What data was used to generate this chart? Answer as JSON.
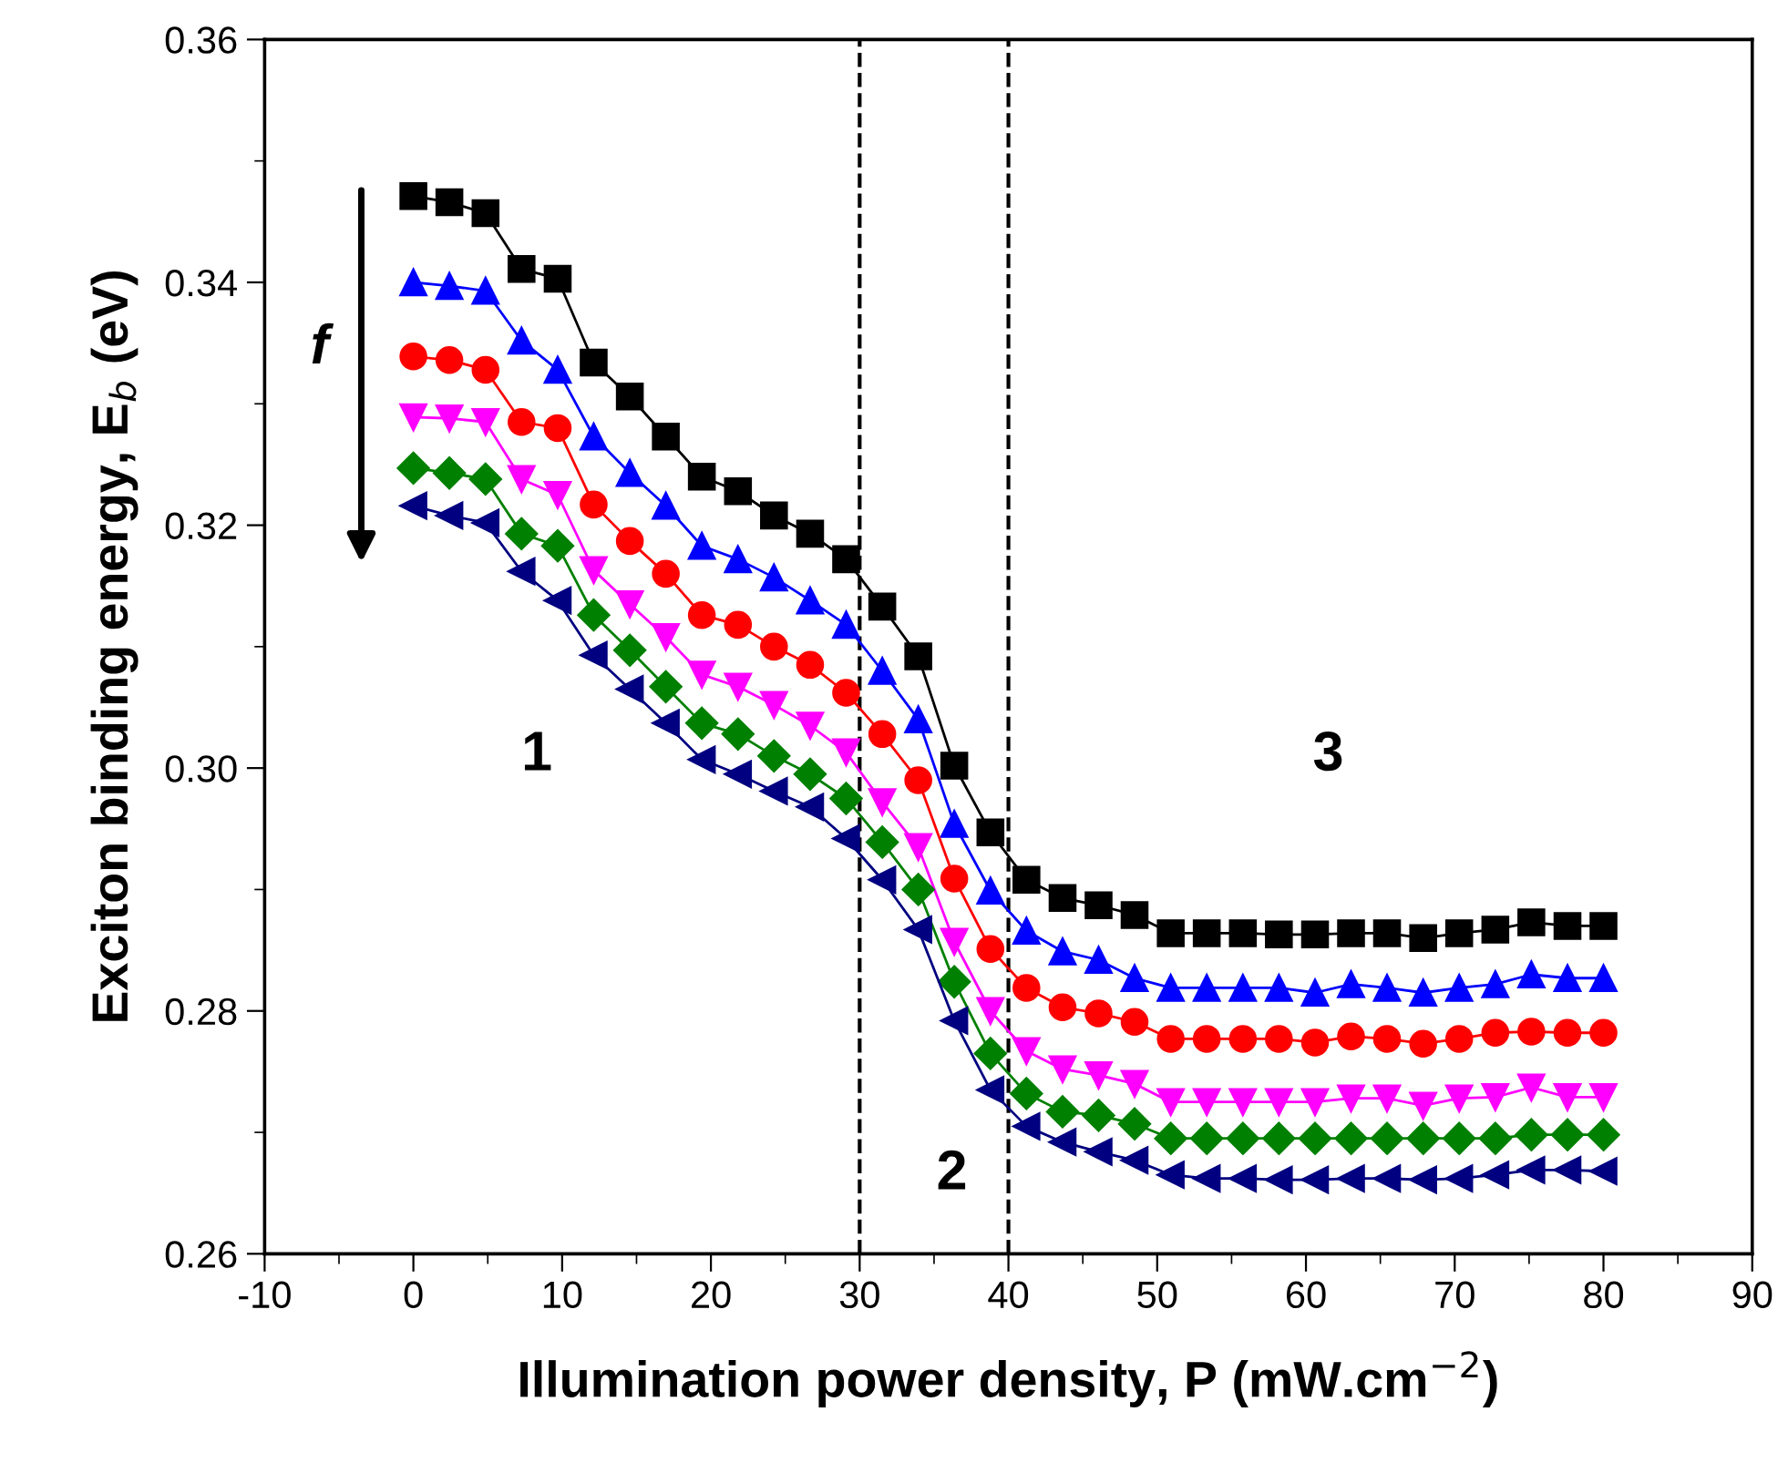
{
  "chart_data": {
    "type": "line",
    "xlabel": "Illumination power density, P (mW.cm$^{−2}$)",
    "ylabel": "Exciton binding energy, E$_{b}$ (eV)",
    "x": [
      0,
      2.42,
      4.85,
      7.27,
      9.7,
      12.12,
      14.55,
      16.97,
      19.39,
      21.82,
      24.24,
      26.67,
      29.09,
      31.52,
      33.94,
      36.36,
      38.79,
      41.21,
      43.64,
      46.06,
      48.48,
      50.91,
      53.33,
      55.76,
      58.18,
      60.61,
      63.03,
      65.45,
      67.88,
      70.3,
      72.73,
      75.15,
      77.58,
      80
    ],
    "series": [
      {
        "color": "#000000",
        "marker": "square",
        "values": [
          0.3471,
          0.3466,
          0.3457,
          0.3411,
          0.3403,
          0.3334,
          0.3306,
          0.3273,
          0.324,
          0.3228,
          0.3208,
          0.3193,
          0.3172,
          0.3133,
          0.3092,
          0.3002,
          0.2947,
          0.2908,
          0.2893,
          0.2887,
          0.2879,
          0.2864,
          0.2864,
          0.2864,
          0.2863,
          0.2863,
          0.2864,
          0.2864,
          0.286,
          0.2864,
          0.2867,
          0.2873,
          0.287,
          0.287
        ]
      },
      {
        "color": "#0000ff",
        "marker": "triangle",
        "values": [
          0.34,
          0.3397,
          0.3393,
          0.3352,
          0.3328,
          0.3273,
          0.3243,
          0.3216,
          0.3183,
          0.3172,
          0.3157,
          0.3138,
          0.3118,
          0.308,
          0.304,
          0.2954,
          0.2899,
          0.2866,
          0.2849,
          0.2842,
          0.2827,
          0.2819,
          0.2819,
          0.2819,
          0.2819,
          0.2815,
          0.2822,
          0.2819,
          0.2815,
          0.2819,
          0.2822,
          0.283,
          0.2827,
          0.2827
        ]
      },
      {
        "color": "#ff0000",
        "marker": "circle",
        "values": [
          0.3339,
          0.3336,
          0.3328,
          0.3285,
          0.328,
          0.3217,
          0.3187,
          0.316,
          0.3126,
          0.3118,
          0.31,
          0.3085,
          0.3062,
          0.3028,
          0.299,
          0.2909,
          0.2851,
          0.2819,
          0.2803,
          0.2798,
          0.2791,
          0.2777,
          0.2777,
          0.2777,
          0.2777,
          0.2774,
          0.2779,
          0.2777,
          0.2773,
          0.2777,
          0.2782,
          0.2783,
          0.2782,
          0.2782
        ]
      },
      {
        "color": "#ff00ff",
        "marker": "triangle_down",
        "values": [
          0.3289,
          0.3288,
          0.3285,
          0.3238,
          0.3225,
          0.3163,
          0.3135,
          0.3108,
          0.3077,
          0.3067,
          0.3052,
          0.3035,
          0.3013,
          0.2972,
          0.2935,
          0.2857,
          0.28,
          0.2767,
          0.2752,
          0.2747,
          0.274,
          0.2725,
          0.2725,
          0.2725,
          0.2725,
          0.2725,
          0.2728,
          0.2728,
          0.2722,
          0.2728,
          0.2729,
          0.2737,
          0.2729,
          0.2729
        ]
      },
      {
        "color": "#008000",
        "marker": "diamond",
        "values": [
          0.3247,
          0.3243,
          0.3238,
          0.3193,
          0.3183,
          0.3126,
          0.3097,
          0.3067,
          0.3037,
          0.3028,
          0.301,
          0.2995,
          0.2975,
          0.2939,
          0.29,
          0.2824,
          0.2765,
          0.2732,
          0.2717,
          0.2714,
          0.2707,
          0.2695,
          0.2695,
          0.2695,
          0.2695,
          0.2695,
          0.2695,
          0.2695,
          0.2695,
          0.2695,
          0.2695,
          0.2698,
          0.2698,
          0.2698
        ]
      },
      {
        "color": "#000080",
        "marker": "triangle_left",
        "values": [
          0.3216,
          0.3208,
          0.3202,
          0.3162,
          0.3138,
          0.3093,
          0.3065,
          0.3037,
          0.3007,
          0.2995,
          0.2981,
          0.2968,
          0.2942,
          0.2908,
          0.2867,
          0.2792,
          0.2735,
          0.2705,
          0.2692,
          0.2684,
          0.2677,
          0.2665,
          0.2662,
          0.2662,
          0.2661,
          0.2661,
          0.2662,
          0.2662,
          0.2661,
          0.2662,
          0.2665,
          0.2669,
          0.2669,
          0.2668
        ]
      }
    ],
    "xlim": [
      -10,
      90
    ],
    "xticks": [
      -10,
      0,
      10,
      20,
      30,
      40,
      50,
      60,
      70,
      80,
      90
    ],
    "ylim": [
      0.26,
      0.36
    ],
    "yticks": [
      0.26,
      0.28,
      {
        "value": 0.3,
        "label": "0.30"
      },
      0.32,
      0.34,
      0.36
    ],
    "ref_lines": [
      {
        "axis": "x",
        "value": 30,
        "color": "#000000",
        "line_style": "dashed"
      },
      {
        "axis": "x",
        "value": 40,
        "color": "#000000",
        "line_style": "dashed"
      }
    ],
    "annotations": [
      "1",
      "2",
      "3",
      "f"
    ],
    "grid": false,
    "legend": false,
    "line_style": "solid"
  }
}
